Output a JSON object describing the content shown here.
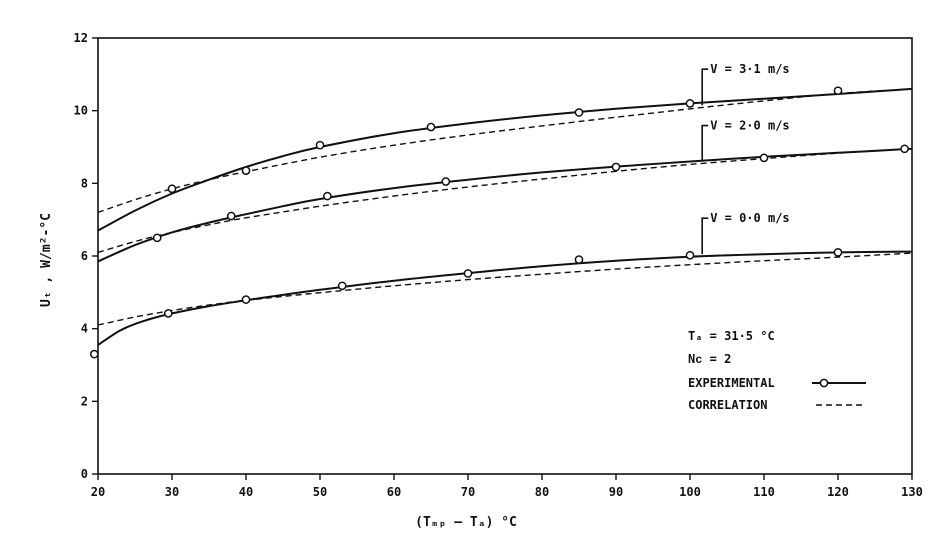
{
  "chart_data": {
    "type": "line",
    "title": "",
    "xlabel": "(Tₘₚ – Tₐ) °C",
    "ylabel": "Uₜ , W/m²-°C",
    "xlim": [
      20,
      130
    ],
    "ylim": [
      0,
      12
    ],
    "x_ticks": [
      20,
      30,
      40,
      50,
      60,
      70,
      80,
      90,
      100,
      110,
      120,
      130
    ],
    "y_ticks": [
      0,
      2,
      4,
      6,
      8,
      10,
      12
    ],
    "grid": false,
    "legend_position": "right",
    "annotations": [
      "Tₐ = 31·5 °C",
      "Nᴄ = 2"
    ],
    "legend": [
      {
        "label": "EXPERIMENTAL",
        "style": "solid-with-circle"
      },
      {
        "label": "CORRELATION",
        "style": "dashed"
      }
    ],
    "series": [
      {
        "label": "V = 3·1 m/s",
        "label_anchor": [
          103,
          10.15
        ],
        "experimental_points": [
          [
            30,
            7.85
          ],
          [
            40,
            8.35
          ],
          [
            50,
            9.05
          ],
          [
            65,
            9.55
          ],
          [
            85,
            9.95
          ],
          [
            100,
            10.2
          ],
          [
            120,
            10.55
          ]
        ],
        "experimental_curve": [
          [
            20,
            6.7
          ],
          [
            25,
            7.25
          ],
          [
            30,
            7.72
          ],
          [
            35,
            8.1
          ],
          [
            40,
            8.45
          ],
          [
            45,
            8.75
          ],
          [
            50,
            9.0
          ],
          [
            60,
            9.38
          ],
          [
            70,
            9.65
          ],
          [
            80,
            9.87
          ],
          [
            90,
            10.05
          ],
          [
            100,
            10.2
          ],
          [
            110,
            10.33
          ],
          [
            120,
            10.46
          ],
          [
            130,
            10.6
          ]
        ],
        "correlation_curve": [
          [
            20,
            7.2
          ],
          [
            25,
            7.55
          ],
          [
            30,
            7.85
          ],
          [
            35,
            8.1
          ],
          [
            40,
            8.32
          ],
          [
            50,
            8.72
          ],
          [
            60,
            9.05
          ],
          [
            70,
            9.33
          ],
          [
            80,
            9.58
          ],
          [
            90,
            9.82
          ],
          [
            100,
            10.05
          ],
          [
            110,
            10.27
          ],
          [
            120,
            10.47
          ],
          [
            130,
            10.6
          ]
        ]
      },
      {
        "label": "V = 2·0 m/s",
        "label_anchor": [
          103,
          8.6
        ],
        "experimental_points": [
          [
            28,
            6.5
          ],
          [
            38,
            7.1
          ],
          [
            51,
            7.65
          ],
          [
            67,
            8.05
          ],
          [
            90,
            8.45
          ],
          [
            110,
            8.7
          ],
          [
            129,
            8.95
          ]
        ],
        "experimental_curve": [
          [
            20,
            5.85
          ],
          [
            25,
            6.3
          ],
          [
            30,
            6.65
          ],
          [
            35,
            6.92
          ],
          [
            40,
            7.15
          ],
          [
            45,
            7.37
          ],
          [
            50,
            7.57
          ],
          [
            60,
            7.87
          ],
          [
            70,
            8.1
          ],
          [
            80,
            8.3
          ],
          [
            90,
            8.46
          ],
          [
            100,
            8.6
          ],
          [
            110,
            8.73
          ],
          [
            120,
            8.84
          ],
          [
            130,
            8.95
          ]
        ],
        "correlation_curve": [
          [
            20,
            6.1
          ],
          [
            25,
            6.4
          ],
          [
            30,
            6.65
          ],
          [
            35,
            6.86
          ],
          [
            40,
            7.05
          ],
          [
            50,
            7.37
          ],
          [
            60,
            7.65
          ],
          [
            70,
            7.9
          ],
          [
            80,
            8.12
          ],
          [
            90,
            8.33
          ],
          [
            100,
            8.52
          ],
          [
            110,
            8.68
          ],
          [
            120,
            8.83
          ],
          [
            130,
            8.95
          ]
        ]
      },
      {
        "label": "V = 0·0 m/s",
        "label_anchor": [
          103,
          6.05
        ],
        "experimental_points": [
          [
            19.5,
            3.3
          ],
          [
            29.5,
            4.42
          ],
          [
            40,
            4.8
          ],
          [
            53,
            5.18
          ],
          [
            70,
            5.52
          ],
          [
            85,
            5.9
          ],
          [
            100,
            6.02
          ],
          [
            120,
            6.1
          ]
        ],
        "experimental_curve": [
          [
            20,
            3.55
          ],
          [
            23,
            3.95
          ],
          [
            26,
            4.2
          ],
          [
            30,
            4.42
          ],
          [
            35,
            4.62
          ],
          [
            40,
            4.78
          ],
          [
            45,
            4.93
          ],
          [
            50,
            5.07
          ],
          [
            60,
            5.32
          ],
          [
            70,
            5.53
          ],
          [
            80,
            5.72
          ],
          [
            90,
            5.87
          ],
          [
            100,
            5.98
          ],
          [
            110,
            6.05
          ],
          [
            120,
            6.1
          ],
          [
            130,
            6.12
          ]
        ],
        "correlation_curve": [
          [
            20,
            4.1
          ],
          [
            25,
            4.32
          ],
          [
            30,
            4.5
          ],
          [
            35,
            4.65
          ],
          [
            40,
            4.78
          ],
          [
            50,
            4.99
          ],
          [
            60,
            5.18
          ],
          [
            70,
            5.35
          ],
          [
            80,
            5.5
          ],
          [
            90,
            5.64
          ],
          [
            100,
            5.76
          ],
          [
            110,
            5.87
          ],
          [
            120,
            5.97
          ],
          [
            130,
            6.08
          ]
        ]
      }
    ]
  }
}
